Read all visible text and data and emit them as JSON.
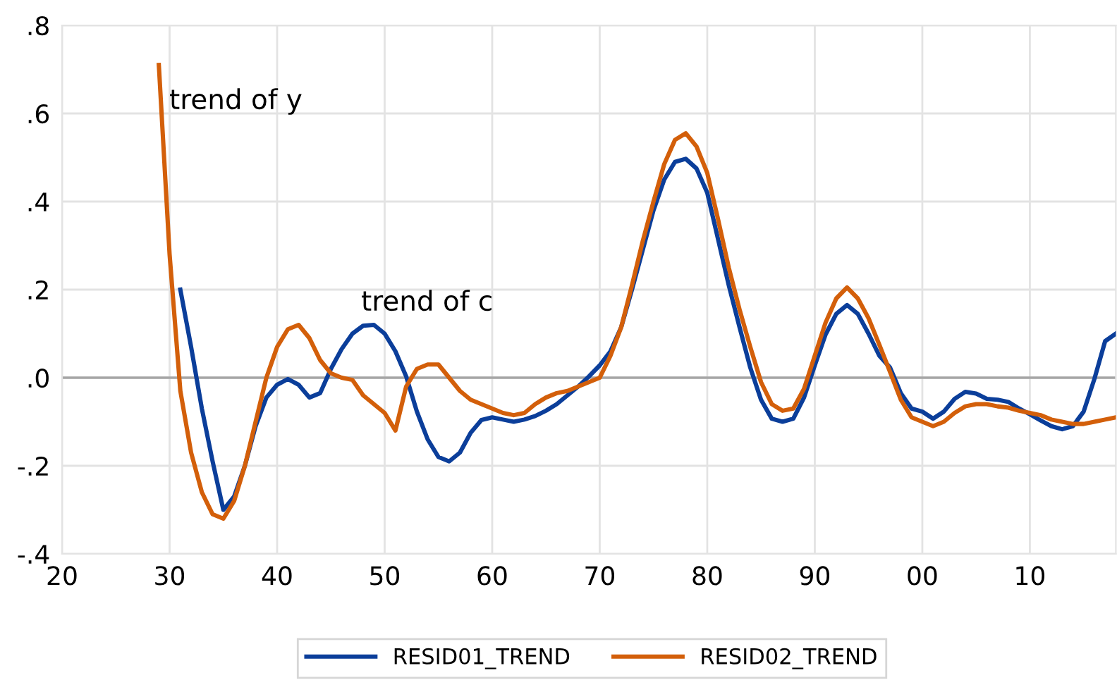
{
  "chart_data": {
    "type": "line",
    "xlim": [
      1920,
      2018
    ],
    "ylim": [
      -0.4,
      0.8
    ],
    "xticks": [
      {
        "value": 1920,
        "label": "20"
      },
      {
        "value": 1930,
        "label": "30"
      },
      {
        "value": 1940,
        "label": "40"
      },
      {
        "value": 1950,
        "label": "50"
      },
      {
        "value": 1960,
        "label": "60"
      },
      {
        "value": 1970,
        "label": "70"
      },
      {
        "value": 1980,
        "label": "80"
      },
      {
        "value": 1990,
        "label": "90"
      },
      {
        "value": 2000,
        "label": "00"
      },
      {
        "value": 2010,
        "label": "10"
      }
    ],
    "yticks": [
      {
        "value": -0.4,
        "label": "-.4"
      },
      {
        "value": -0.2,
        "label": "-.2"
      },
      {
        "value": 0,
        "label": ".0"
      },
      {
        "value": 0.2,
        "label": ".2"
      },
      {
        "value": 0.4,
        "label": ".4"
      },
      {
        "value": 0.6,
        "label": ".6"
      },
      {
        "value": 0.8,
        "label": ".8"
      }
    ],
    "grid": true,
    "legend": "bottom",
    "marker": "none",
    "line_style": "solid",
    "ref_lines": [
      {
        "axis": "y",
        "value": 0,
        "color": "#a6a6a6"
      }
    ],
    "annotations": [
      "trend of y",
      "trend of c"
    ],
    "series": [
      {
        "name": "RESID01_TREND",
        "color": "#0b3e9a",
        "x": [
          1931,
          1932,
          1933,
          1934,
          1935,
          1936,
          1937,
          1938,
          1939,
          1940,
          1941,
          1942,
          1943,
          1944,
          1945,
          1946,
          1947,
          1948,
          1949,
          1950,
          1951,
          1952,
          1953,
          1954,
          1955,
          1956,
          1957,
          1958,
          1959,
          1960,
          1961,
          1962,
          1963,
          1964,
          1965,
          1966,
          1967,
          1968,
          1969,
          1970,
          1971,
          1972,
          1973,
          1974,
          1975,
          1976,
          1977,
          1978,
          1979,
          1980,
          1981,
          1982,
          1983,
          1984,
          1985,
          1986,
          1987,
          1988,
          1989,
          1990,
          1991,
          1992,
          1993,
          1994,
          1995,
          1996,
          1997,
          1998,
          1999,
          2000,
          2001,
          2002,
          2003,
          2004,
          2005,
          2006,
          2007,
          2008,
          2009,
          2010,
          2011,
          2012,
          2013,
          2014,
          2015,
          2016,
          2017,
          2018
        ],
        "values": [
          0.2,
          0.07,
          -0.07,
          -0.19,
          -0.3,
          -0.27,
          -0.2,
          -0.11,
          -0.045,
          -0.016,
          -0.003,
          -0.016,
          -0.045,
          -0.035,
          0.02,
          0.065,
          0.1,
          0.118,
          0.12,
          0.1,
          0.06,
          0.003,
          -0.077,
          -0.14,
          -0.18,
          -0.19,
          -0.17,
          -0.125,
          -0.096,
          -0.09,
          -0.095,
          -0.1,
          -0.095,
          -0.087,
          -0.075,
          -0.06,
          -0.04,
          -0.02,
          0.003,
          0.028,
          0.06,
          0.115,
          0.2,
          0.29,
          0.38,
          0.45,
          0.49,
          0.497,
          0.475,
          0.42,
          0.315,
          0.21,
          0.115,
          0.023,
          -0.05,
          -0.093,
          -0.1,
          -0.093,
          -0.045,
          0.028,
          0.098,
          0.145,
          0.165,
          0.145,
          0.1,
          0.05,
          0.023,
          -0.035,
          -0.07,
          -0.077,
          -0.093,
          -0.077,
          -0.048,
          -0.032,
          -0.036,
          -0.048,
          -0.05,
          -0.055,
          -0.07,
          -0.083,
          -0.097,
          -0.11,
          -0.117,
          -0.11,
          -0.077,
          -0.003,
          0.083,
          0.1
        ]
      },
      {
        "name": "RESID02_TREND",
        "color": "#d35f0a",
        "x": [
          1929,
          1930,
          1931,
          1932,
          1933,
          1934,
          1935,
          1936,
          1937,
          1938,
          1939,
          1940,
          1941,
          1942,
          1943,
          1944,
          1945,
          1946,
          1947,
          1948,
          1949,
          1950,
          1951,
          1952,
          1953,
          1954,
          1955,
          1956,
          1957,
          1958,
          1959,
          1960,
          1961,
          1962,
          1963,
          1964,
          1965,
          1966,
          1967,
          1968,
          1969,
          1970,
          1971,
          1972,
          1973,
          1974,
          1975,
          1976,
          1977,
          1978,
          1979,
          1980,
          1981,
          1982,
          1983,
          1984,
          1985,
          1986,
          1987,
          1988,
          1989,
          1990,
          1991,
          1992,
          1993,
          1994,
          1995,
          1996,
          1997,
          1998,
          1999,
          2000,
          2001,
          2002,
          2003,
          2004,
          2005,
          2006,
          2007,
          2008,
          2009,
          2010,
          2011,
          2012,
          2013,
          2014,
          2015,
          2016,
          2017,
          2018
        ],
        "values": [
          0.71,
          0.28,
          -0.03,
          -0.17,
          -0.26,
          -0.31,
          -0.32,
          -0.28,
          -0.2,
          -0.1,
          0.0,
          0.07,
          0.11,
          0.12,
          0.09,
          0.04,
          0.01,
          0.0,
          -0.005,
          -0.04,
          -0.06,
          -0.08,
          -0.12,
          -0.02,
          0.02,
          0.03,
          0.03,
          0.0,
          -0.03,
          -0.05,
          -0.06,
          -0.07,
          -0.08,
          -0.085,
          -0.08,
          -0.06,
          -0.045,
          -0.035,
          -0.03,
          -0.02,
          -0.01,
          0.0,
          0.05,
          0.115,
          0.21,
          0.31,
          0.4,
          0.485,
          0.54,
          0.555,
          0.525,
          0.465,
          0.36,
          0.25,
          0.155,
          0.07,
          -0.01,
          -0.06,
          -0.075,
          -0.07,
          -0.025,
          0.05,
          0.125,
          0.18,
          0.205,
          0.18,
          0.135,
          0.075,
          0.013,
          -0.05,
          -0.09,
          -0.1,
          -0.11,
          -0.1,
          -0.08,
          -0.065,
          -0.06,
          -0.06,
          -0.065,
          -0.068,
          -0.075,
          -0.08,
          -0.085,
          -0.095,
          -0.1,
          -0.105,
          -0.105,
          -0.1,
          -0.095,
          -0.09
        ]
      }
    ]
  }
}
